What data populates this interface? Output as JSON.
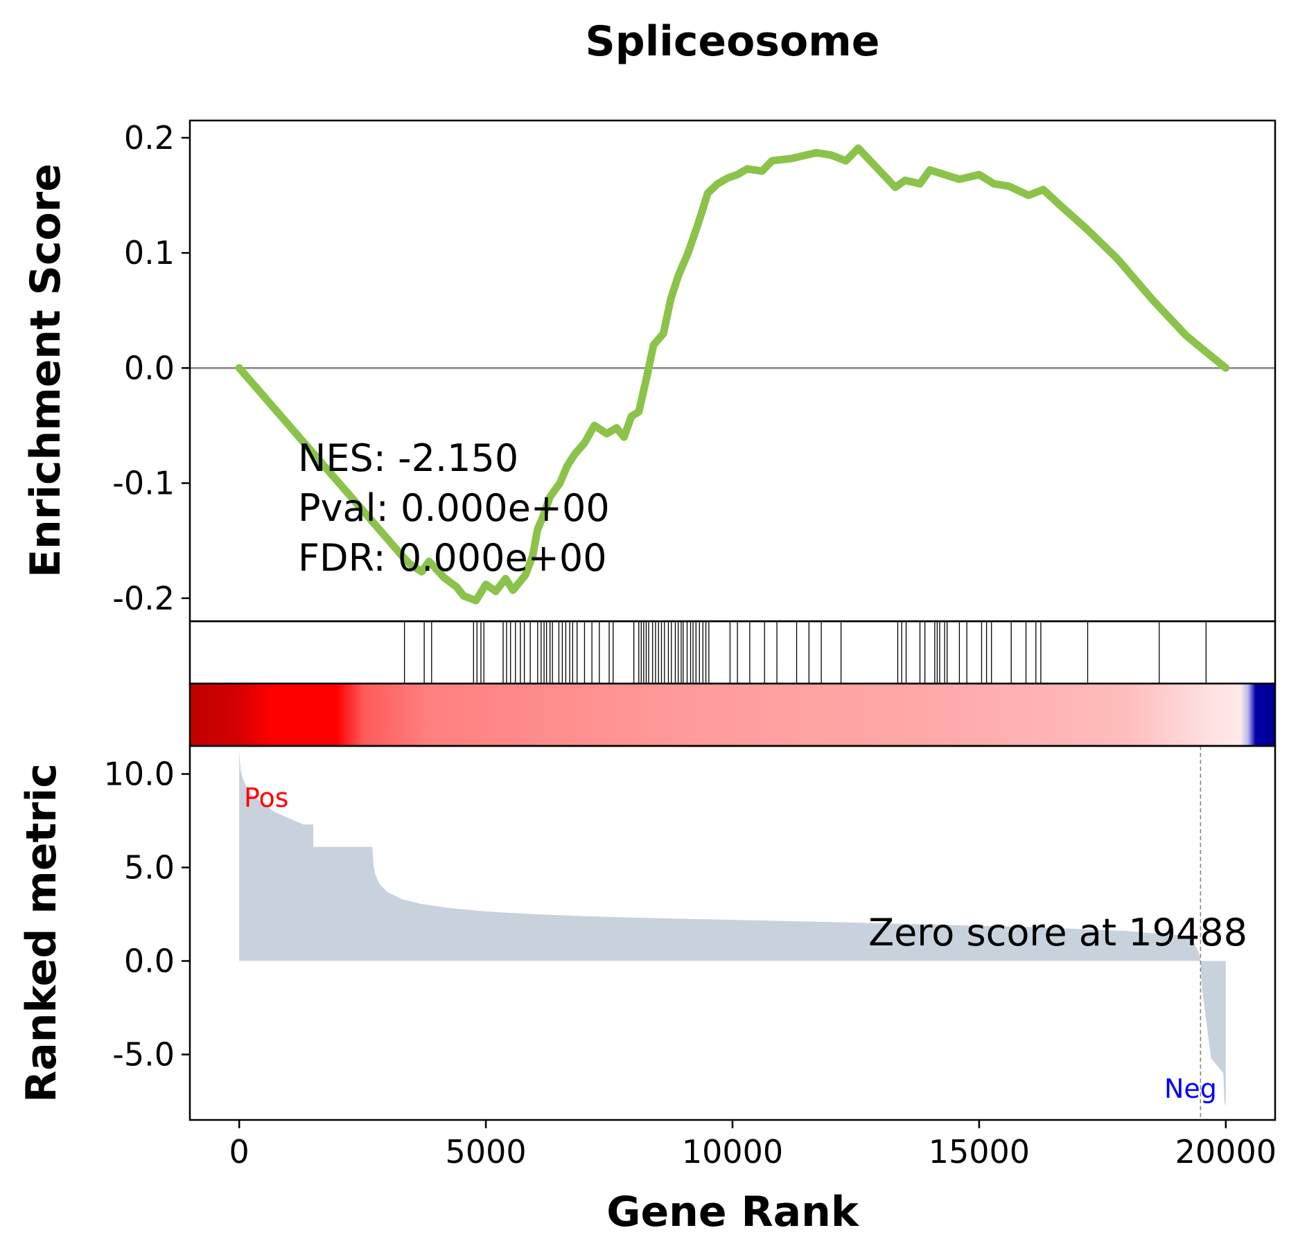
{
  "chart_data": {
    "type": "line",
    "title": "Spliceosome",
    "xlabel": "Gene Rank",
    "xlim": [
      -1000,
      21000
    ],
    "x_ticks": [
      "0",
      "5000",
      "10000",
      "15000",
      "20000"
    ],
    "x_tick_values": [
      0,
      5000,
      10000,
      15000,
      20000
    ],
    "enrichment": {
      "ylabel": "Enrichment Score",
      "ylim": [
        -0.22,
        0.215
      ],
      "y_ticks": [
        "0.2",
        "0.1",
        "0.0",
        "-0.1",
        "-0.2"
      ],
      "y_tick_values": [
        0.2,
        0.1,
        0.0,
        -0.1,
        -0.2
      ],
      "color": "#8bc34a",
      "zero_line_color": "#808080",
      "curve": [
        [
          0,
          0.0
        ],
        [
          3300,
          -0.163
        ],
        [
          3450,
          -0.17
        ],
        [
          3700,
          -0.177
        ],
        [
          3850,
          -0.168
        ],
        [
          4150,
          -0.182
        ],
        [
          4400,
          -0.19
        ],
        [
          4550,
          -0.198
        ],
        [
          4800,
          -0.202
        ],
        [
          5000,
          -0.188
        ],
        [
          5200,
          -0.194
        ],
        [
          5400,
          -0.183
        ],
        [
          5550,
          -0.193
        ],
        [
          5800,
          -0.18
        ],
        [
          5950,
          -0.163
        ],
        [
          6050,
          -0.14
        ],
        [
          6150,
          -0.13
        ],
        [
          6300,
          -0.112
        ],
        [
          6500,
          -0.1
        ],
        [
          6650,
          -0.085
        ],
        [
          6800,
          -0.075
        ],
        [
          7000,
          -0.065
        ],
        [
          7200,
          -0.05
        ],
        [
          7450,
          -0.057
        ],
        [
          7650,
          -0.052
        ],
        [
          7800,
          -0.06
        ],
        [
          7950,
          -0.042
        ],
        [
          8100,
          -0.038
        ],
        [
          8250,
          -0.01
        ],
        [
          8400,
          0.02
        ],
        [
          8600,
          0.03
        ],
        [
          8750,
          0.06
        ],
        [
          8900,
          0.08
        ],
        [
          9100,
          0.1
        ],
        [
          9300,
          0.125
        ],
        [
          9500,
          0.152
        ],
        [
          9700,
          0.16
        ],
        [
          9900,
          0.165
        ],
        [
          10100,
          0.168
        ],
        [
          10300,
          0.173
        ],
        [
          10600,
          0.171
        ],
        [
          10800,
          0.18
        ],
        [
          11200,
          0.182
        ],
        [
          11700,
          0.187
        ],
        [
          12000,
          0.185
        ],
        [
          12300,
          0.18
        ],
        [
          12550,
          0.191
        ],
        [
          13300,
          0.157
        ],
        [
          13500,
          0.163
        ],
        [
          13800,
          0.16
        ],
        [
          14000,
          0.172
        ],
        [
          14300,
          0.168
        ],
        [
          14600,
          0.164
        ],
        [
          15000,
          0.168
        ],
        [
          15300,
          0.16
        ],
        [
          15600,
          0.158
        ],
        [
          16000,
          0.15
        ],
        [
          16300,
          0.155
        ],
        [
          16600,
          0.143
        ],
        [
          17200,
          0.12
        ],
        [
          17800,
          0.095
        ],
        [
          18500,
          0.06
        ],
        [
          19200,
          0.028
        ],
        [
          19600,
          0.014
        ],
        [
          20000,
          0.0
        ]
      ]
    },
    "hits": [
      3350,
      3750,
      3900,
      4750,
      4820,
      4900,
      4960,
      5350,
      5420,
      5500,
      5600,
      5700,
      5780,
      5900,
      6050,
      6120,
      6180,
      6230,
      6300,
      6350,
      6480,
      6550,
      6620,
      6700,
      6760,
      6850,
      7000,
      7150,
      7300,
      7500,
      7580,
      8000,
      8100,
      8150,
      8200,
      8250,
      8300,
      8380,
      8440,
      8500,
      8560,
      8620,
      8700,
      8760,
      8840,
      8900,
      8960,
      9000,
      9080,
      9150,
      9200,
      9260,
      9330,
      9400,
      9460,
      9520,
      9950,
      10100,
      10350,
      10650,
      10900,
      11300,
      11550,
      11800,
      12200,
      13350,
      13430,
      13520,
      13800,
      13900,
      14100,
      14150,
      14200,
      14300,
      14350,
      14600,
      14750,
      15050,
      15150,
      15250,
      15650,
      15950,
      16150,
      16250,
      17200,
      18650,
      19600
    ],
    "ranked": {
      "ylabel": "Ranked metric",
      "ylim": [
        -8.5,
        11.5
      ],
      "y_ticks": [
        "10.0",
        "5.0",
        "0.0",
        "-5.0"
      ],
      "y_tick_values": [
        10.0,
        5.0,
        0.0,
        -5.0
      ],
      "fill_color": "#c8d2dc",
      "profile": [
        [
          0,
          11.3
        ],
        [
          10,
          10.9
        ],
        [
          30,
          10.2
        ],
        [
          80,
          9.7
        ],
        [
          150,
          9.3
        ],
        [
          250,
          8.9
        ],
        [
          400,
          8.6
        ],
        [
          550,
          8.3
        ],
        [
          700,
          8.0
        ],
        [
          950,
          7.7
        ],
        [
          1300,
          7.3
        ],
        [
          1500,
          7.3
        ],
        [
          1500,
          6.1
        ],
        [
          2700,
          6.1
        ],
        [
          2720,
          5.2
        ],
        [
          2760,
          4.6
        ],
        [
          2850,
          4.1
        ],
        [
          3000,
          3.7
        ],
        [
          3300,
          3.3
        ],
        [
          3700,
          3.05
        ],
        [
          4200,
          2.85
        ],
        [
          5000,
          2.65
        ],
        [
          6000,
          2.5
        ],
        [
          7000,
          2.4
        ],
        [
          8000,
          2.32
        ],
        [
          10000,
          2.2
        ],
        [
          12000,
          2.08
        ],
        [
          14000,
          1.95
        ],
        [
          16000,
          1.82
        ],
        [
          18000,
          1.6
        ],
        [
          19000,
          1.38
        ],
        [
          19300,
          1.2
        ],
        [
          19450,
          0.5
        ],
        [
          19488,
          0.0
        ],
        [
          19520,
          -1.5
        ],
        [
          19700,
          -5.2
        ],
        [
          19950,
          -6.0
        ],
        [
          19970,
          -7.5
        ],
        [
          20000,
          -7.8
        ]
      ],
      "zero_score_text": "Zero score at 19488",
      "zero_score_rank": 19488,
      "pos_label": "Pos",
      "neg_label": "Neg",
      "pos_color": "#ff0000",
      "neg_color": "#0000ff",
      "dashed_line_color": "#808080"
    },
    "color_bar": {
      "stops": [
        [
          0,
          "#c00000"
        ],
        [
          0.045,
          "#d40000"
        ],
        [
          0.075,
          "#ff0000"
        ],
        [
          0.135,
          "#ff0000"
        ],
        [
          0.16,
          "#ff5a5a"
        ],
        [
          0.22,
          "#ff8080"
        ],
        [
          0.45,
          "#ff9a9a"
        ],
        [
          0.7,
          "#ffaaaa"
        ],
        [
          0.86,
          "#ffbcbc"
        ],
        [
          0.935,
          "#ffdede"
        ],
        [
          0.968,
          "#ffeaea"
        ],
        [
          0.975,
          "#b8b8f0"
        ],
        [
          0.982,
          "#0000a8"
        ],
        [
          1.0,
          "#000090"
        ]
      ]
    },
    "stats": {
      "nes": "NES: -2.150",
      "pval": "Pval: 0.000e+00",
      "fdr": "FDR: 0.000e+00"
    }
  }
}
